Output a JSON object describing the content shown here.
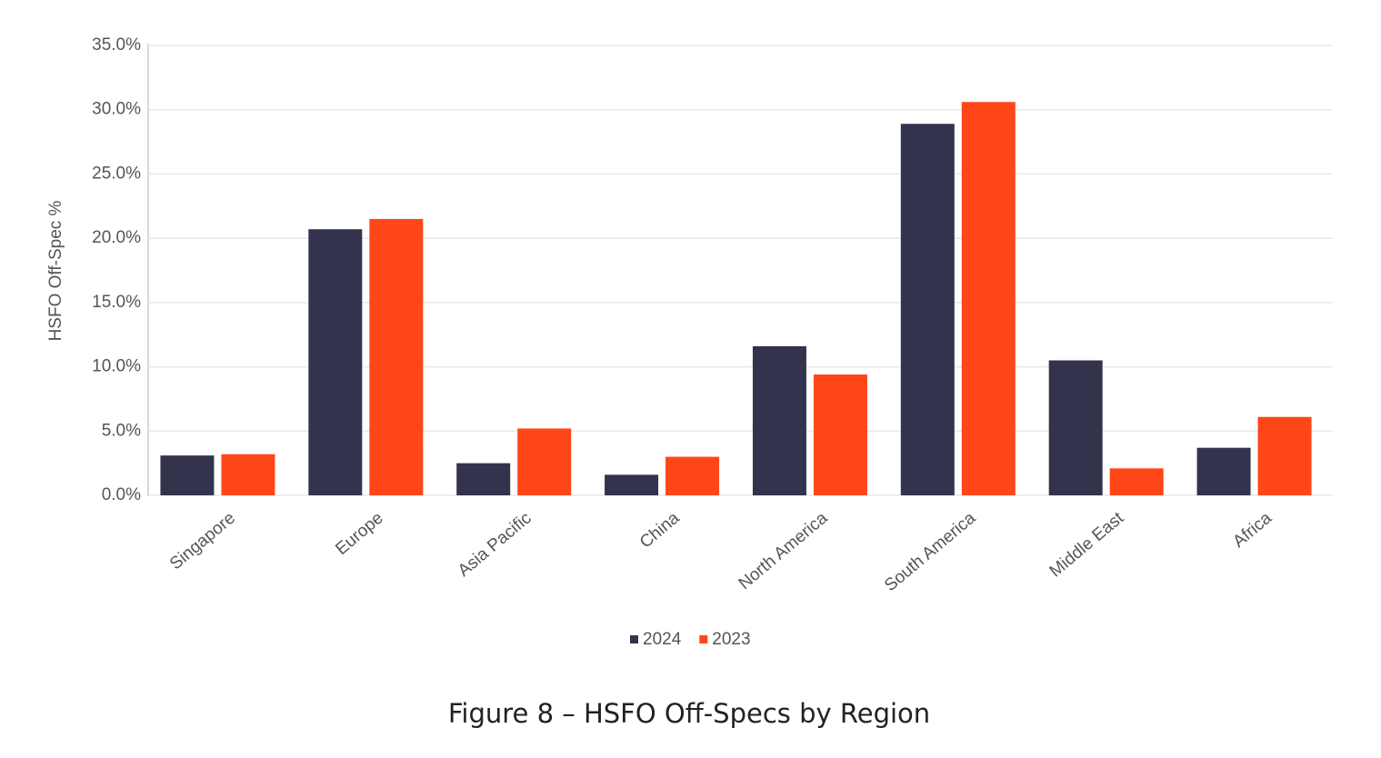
{
  "chart_data": {
    "type": "bar",
    "caption": "Figure 8 – HSFO Off-Specs by Region",
    "y_label": "HSFO Off-Spec %",
    "categories": [
      "Singapore",
      "Europe",
      "Asia Pacific",
      "China",
      "North America",
      "South America",
      "Middle East",
      "Africa"
    ],
    "series": [
      {
        "name": "2024",
        "color": "#33334d",
        "values": [
          3.1,
          20.7,
          2.5,
          1.6,
          11.6,
          28.9,
          10.5,
          3.7
        ]
      },
      {
        "name": "2023",
        "color": "#ff4619",
        "values": [
          3.2,
          21.5,
          5.2,
          3.0,
          9.4,
          30.6,
          2.1,
          6.1
        ]
      }
    ],
    "ylim": [
      0,
      35
    ],
    "yticks": [
      {
        "value": 0,
        "label": "0.0%"
      },
      {
        "value": 5,
        "label": "5.0%"
      },
      {
        "value": 10,
        "label": "10.0%"
      },
      {
        "value": 15,
        "label": "15.0%"
      },
      {
        "value": 20,
        "label": "20.0%"
      },
      {
        "value": 25,
        "label": "25.0%"
      },
      {
        "value": 30,
        "label": "30.0%"
      },
      {
        "value": 35,
        "label": "35.0%"
      }
    ],
    "grid": true
  }
}
